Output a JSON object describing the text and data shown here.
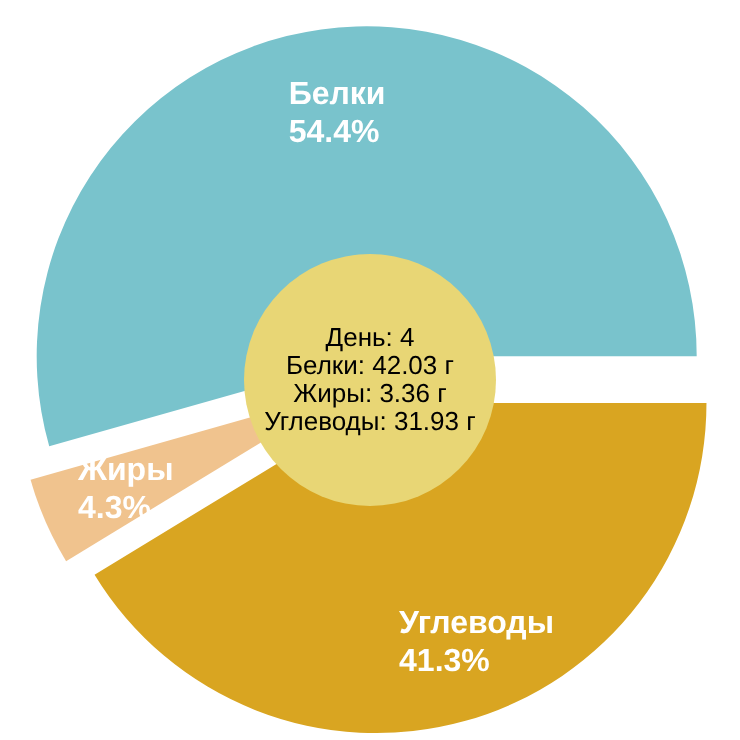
{
  "chart_data": {
    "type": "pie",
    "categories": [
      "Углеводы",
      "Жиры",
      "Белки"
    ],
    "values": [
      41.3,
      4.3,
      54.4
    ],
    "colors": [
      "#d9a521",
      "#f0c38e",
      "#79c3cc"
    ],
    "value_labels": [
      "41.3%",
      "4.3%",
      "54.4%"
    ],
    "annotations": [
      "День: 4",
      "Белки: 42.03 г",
      "Жиры: 3.36 г",
      "Углеводы: 31.93 г"
    ]
  }
}
